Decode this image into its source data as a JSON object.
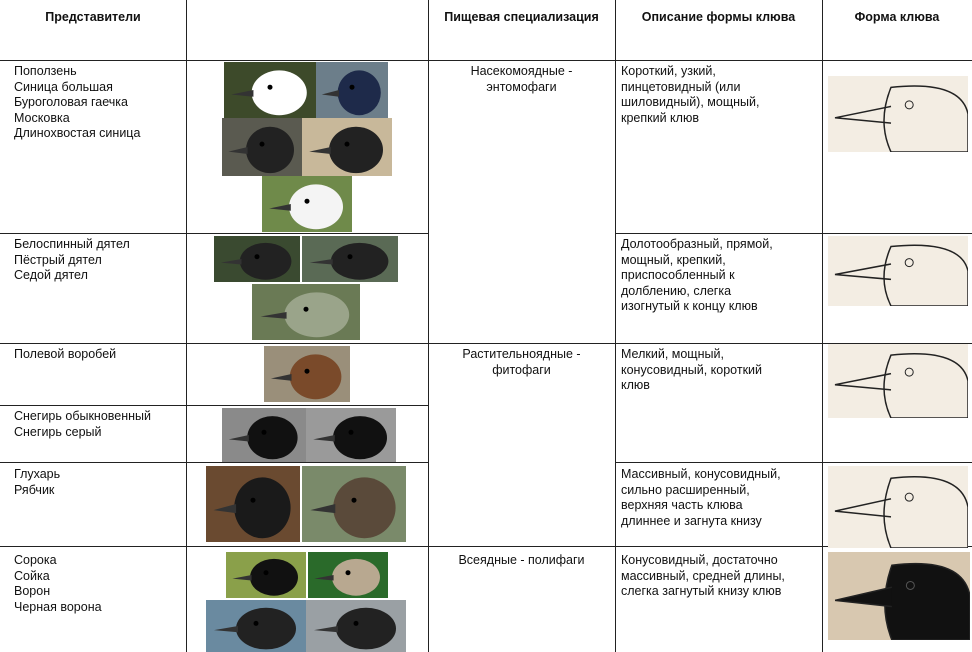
{
  "header": {
    "columns": [
      "Представители",
      "Пищевая специализация",
      "Описание формы клюва",
      "Форма клюва"
    ]
  },
  "table": {
    "rows": [
      {
        "birds": [
          "Поползень",
          "Синица большая",
          "Буроголовая гаечка",
          "Московка",
          "Длинохвостая синица"
        ]
      },
      {
        "birds": [
          "Белоспинный дятел",
          "Пёстрый дятел",
          "Седой дятел"
        ]
      },
      {
        "birds": [
          "Полевой воробей"
        ]
      },
      {
        "birds": [
          "Снегирь обыкновенный",
          "Снегирь серый"
        ]
      },
      {
        "birds": [
          "Глухарь",
          "Рябчик"
        ]
      },
      {
        "birds": [
          "Сорока",
          "Сойка",
          "Ворон",
          "Черная ворона"
        ]
      }
    ],
    "specializations": [
      [
        "Насекомоядные -",
        "энтомофаги"
      ],
      [
        "Растительноядные -",
        "фитофаги"
      ],
      [
        "Всеядные - полифаги"
      ]
    ],
    "descriptions": [
      [
        "Короткий, узкий,",
        "пинцетовидный (или",
        "шиловидный), мощный,",
        "крепкий клюв"
      ],
      [
        "Долотообразный, прямой,",
        "мощный, крепкий,",
        "приспособленный к",
        "долблению, слегка",
        "изогнутый к концу клюв"
      ],
      [
        "Мелкий, мощный,",
        "конусовидный, короткий",
        "клюв"
      ],
      [
        "Массивный, конусовидный,",
        "сильно расширенный,",
        "верхняя часть клюва",
        "длиннее и загнута книзу"
      ],
      [
        "Конусовидный, достаточно",
        "массивный, средней длины,",
        "слегка загнутый книзу клюв"
      ]
    ]
  }
}
